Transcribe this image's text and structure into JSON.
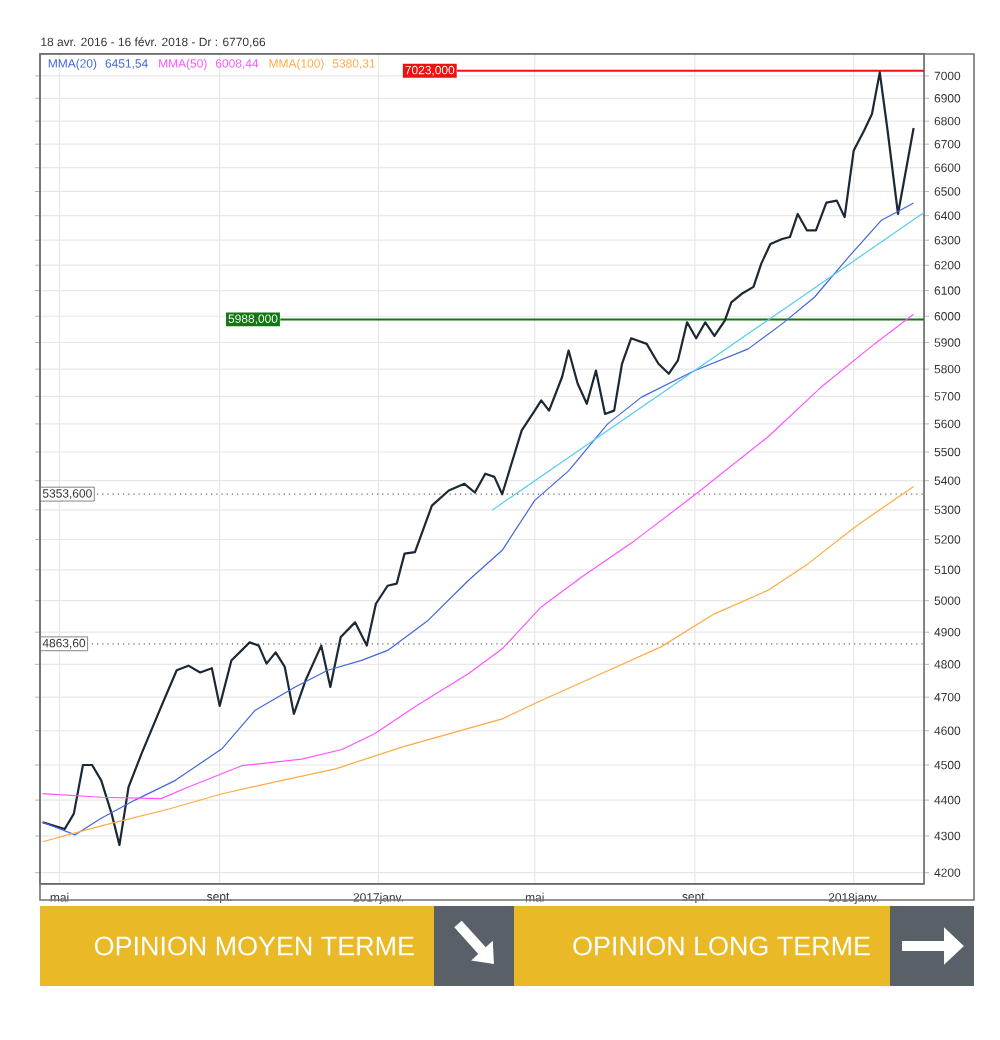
{
  "chart_data": {
    "type": "line",
    "title": "18 avr. 2016 - 16 févr. 2018 - Dr : 6770,66",
    "log": "y",
    "grid": true,
    "legend": "top left",
    "line_style": "solid",
    "marker": "none",
    "xlim": [
      "2016-04-16",
      "2018-02-24"
    ],
    "xticks": [
      {
        "value": "2016-05-01",
        "label": "mai"
      },
      {
        "value": "2016-09-01",
        "label": "sept."
      },
      {
        "value": "2017-01-01",
        "label": "2017janv."
      },
      {
        "value": "2017-05-01",
        "label": "mai"
      },
      {
        "value": "2017-09-01",
        "label": "sept."
      },
      {
        "value": "2018-01-01",
        "label": "2018janv."
      }
    ],
    "ylim": [
      4170,
      7100
    ],
    "yticks": [
      4200,
      4300,
      4400,
      4500,
      4600,
      4700,
      4800,
      4900,
      5000,
      5100,
      5200,
      5300,
      5400,
      5500,
      5600,
      5700,
      5800,
      5900,
      6000,
      6100,
      6200,
      6300,
      6400,
      6500,
      6600,
      6700,
      6800,
      6900,
      7000
    ],
    "series": [
      {
        "color": "#1c2833",
        "x": [
          "2016-04-18",
          "2016-05-05",
          "2016-05-12",
          "2016-05-19",
          "2016-05-26",
          "2016-06-02",
          "2016-06-10",
          "2016-06-16",
          "2016-06-23",
          "2016-07-03",
          "2016-07-18",
          "2016-07-30",
          "2016-08-08",
          "2016-08-17",
          "2016-08-26",
          "2016-09-01",
          "2016-09-10",
          "2016-09-24",
          "2016-10-01",
          "2016-10-07",
          "2016-10-14",
          "2016-10-21",
          "2016-10-28",
          "2016-11-06",
          "2016-11-18",
          "2016-11-25",
          "2016-12-03",
          "2016-12-14",
          "2016-12-23",
          "2016-12-30",
          "2017-01-08",
          "2017-01-15",
          "2017-01-21",
          "2017-01-29",
          "2017-02-11",
          "2017-02-24",
          "2017-03-08",
          "2017-03-16",
          "2017-03-24",
          "2017-03-31",
          "2017-04-06",
          "2017-04-13",
          "2017-04-21",
          "2017-05-01",
          "2017-05-06",
          "2017-05-12",
          "2017-05-22",
          "2017-05-27",
          "2017-06-03",
          "2017-06-10",
          "2017-06-17",
          "2017-06-24",
          "2017-07-01",
          "2017-07-07",
          "2017-07-14",
          "2017-07-26",
          "2017-08-04",
          "2017-08-12",
          "2017-08-19",
          "2017-08-26",
          "2017-09-02",
          "2017-09-09",
          "2017-09-16",
          "2017-09-24",
          "2017-09-29",
          "2017-10-07",
          "2017-10-16",
          "2017-10-22",
          "2017-10-29",
          "2017-11-07",
          "2017-11-13",
          "2017-11-19",
          "2017-11-26",
          "2017-12-03",
          "2017-12-11",
          "2017-12-19",
          "2017-12-25",
          "2018-01-01",
          "2018-01-09",
          "2018-01-15",
          "2018-01-21",
          "2018-01-27",
          "2018-02-04",
          "2018-02-16"
        ],
        "values": [
          4338,
          4319,
          4362,
          4500,
          4500,
          4456,
          4362,
          4275,
          4437,
          4533,
          4671,
          4782,
          4796,
          4775,
          4788,
          4674,
          4812,
          4868,
          4858,
          4802,
          4837,
          4792,
          4650,
          4751,
          4858,
          4731,
          4885,
          4931,
          4858,
          4990,
          5048,
          5055,
          5153,
          5158,
          5314,
          5366,
          5389,
          5359,
          5424,
          5413,
          5353,
          5457,
          5577,
          5648,
          5685,
          5648,
          5771,
          5870,
          5746,
          5673,
          5795,
          5636,
          5648,
          5820,
          5916,
          5895,
          5820,
          5783,
          5833,
          5977,
          5916,
          5977,
          5925,
          5984,
          6054,
          6087,
          6114,
          6206,
          6285,
          6305,
          6313,
          6407,
          6340,
          6340,
          6454,
          6462,
          6394,
          6673,
          6759,
          6831,
          7015,
          6759,
          6407,
          6770
        ]
      },
      {
        "name": "MMA(20)",
        "color": "#4466dd",
        "x": [
          "2016-04-18",
          "2016-05-13",
          "2016-06-02",
          "2016-06-28",
          "2016-07-29",
          "2016-09-03",
          "2016-09-28",
          "2016-10-29",
          "2016-11-23",
          "2016-12-19",
          "2017-01-08",
          "2017-02-08",
          "2017-03-11",
          "2017-04-06",
          "2017-05-01",
          "2017-05-27",
          "2017-06-26",
          "2017-07-22",
          "2017-09-01",
          "2017-10-12",
          "2017-11-07",
          "2017-12-02",
          "2017-12-28",
          "2018-01-22",
          "2018-02-16"
        ],
        "values": [
          4338,
          4303,
          4349,
          4400,
          4456,
          4548,
          4660,
          4731,
          4782,
          4812,
          4843,
          4937,
          5065,
          5164,
          5332,
          5434,
          5600,
          5697,
          5795,
          5876,
          5971,
          6075,
          6232,
          6380,
          6452
        ]
      },
      {
        "name": "MMA(50)",
        "color": "#ff55ff",
        "x": [
          "2016-04-18",
          "2016-06-02",
          "2016-07-18",
          "2016-08-08",
          "2016-09-18",
          "2016-11-03",
          "2016-12-04",
          "2016-12-29",
          "2017-01-29",
          "2017-03-11",
          "2017-04-06",
          "2017-05-06",
          "2017-06-06",
          "2017-07-17",
          "2017-09-01",
          "2017-10-27",
          "2017-12-07",
          "2018-01-17",
          "2018-02-16"
        ],
        "values": [
          4418,
          4408,
          4404,
          4437,
          4498,
          4517,
          4545,
          4591,
          4671,
          4771,
          4848,
          4980,
          5076,
          5197,
          5351,
          5553,
          5734,
          5895,
          6008
        ]
      },
      {
        "name": "MMA(100)",
        "color": "#ffaa44",
        "x": [
          "2016-04-18",
          "2016-06-02",
          "2016-07-24",
          "2016-09-03",
          "2016-10-19",
          "2016-11-29",
          "2017-01-19",
          "2017-03-11",
          "2017-04-06",
          "2017-05-06",
          "2017-06-21",
          "2017-08-06",
          "2017-09-16",
          "2017-10-27",
          "2017-11-27",
          "2018-01-02",
          "2018-02-16"
        ],
        "values": [
          4284,
          4328,
          4375,
          4418,
          4456,
          4489,
          4552,
          4607,
          4635,
          4690,
          4771,
          4854,
          4958,
          5033,
          5120,
          5242,
          5380
        ]
      },
      {
        "type": "line",
        "color": "#55ccee",
        "x": [
          "2017-03-29",
          "2018-02-24"
        ],
        "values": [
          5298,
          6413
        ]
      }
    ],
    "ref_lines": [
      {
        "axis": "y",
        "value": 7023,
        "label": "7023,000",
        "color": "#ee1111",
        "line_style": "solid"
      },
      {
        "axis": "y",
        "value": 5988,
        "label": "5988,000",
        "color": "#117711",
        "line_style": "solid"
      },
      {
        "axis": "y",
        "value": 5353.6,
        "label": "5353,600",
        "color": "#666666",
        "line_style": "dotted"
      },
      {
        "axis": "y",
        "value": 4863.6,
        "label": "4863,60",
        "color": "#666666",
        "line_style": "dotted"
      }
    ],
    "annotations": [
      "6451,54",
      "6008,44",
      "5380,31",
      "OPINION MOYEN TERME",
      "OPINION LONG TERME"
    ]
  }
}
